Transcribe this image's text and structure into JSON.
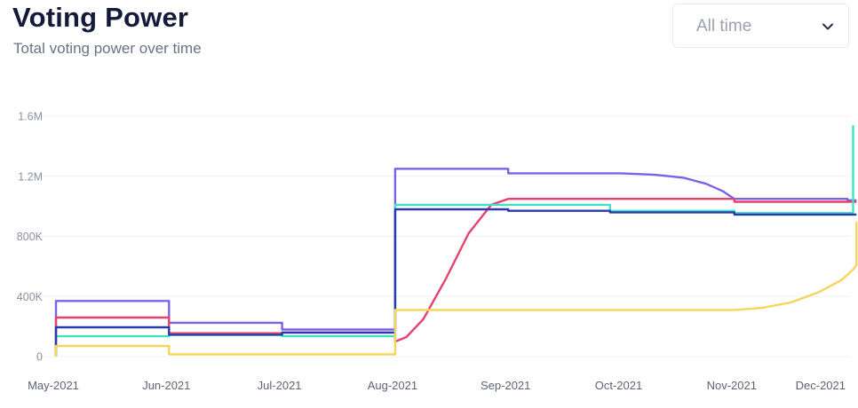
{
  "header": {
    "title": "Voting Power",
    "subtitle": "Total voting power over time"
  },
  "range_select": {
    "selected": "All time",
    "icon": "chevron-down-icon"
  },
  "chart_data": {
    "type": "line",
    "title": "Voting Power",
    "subtitle": "Total voting power over time",
    "x_ticks": [
      "May-2021",
      "Jun-2021",
      "Jul-2021",
      "Aug-2021",
      "Sep-2021",
      "Oct-2021",
      "Nov-2021",
      "Dec-2021"
    ],
    "y_ticks": [
      {
        "value": 0,
        "label": "0"
      },
      {
        "value": 400000,
        "label": "400K"
      },
      {
        "value": 800000,
        "label": "800K"
      },
      {
        "value": 1200000,
        "label": "1.2M"
      },
      {
        "value": 1600000,
        "label": "1.6M"
      }
    ],
    "ylim": [
      0,
      1600000
    ],
    "grid": true,
    "x_unit": "months since May-2021",
    "series": [
      {
        "color": "#7b61ea",
        "points": [
          [
            0,
            0
          ],
          [
            0,
            370000
          ],
          [
            1,
            370000
          ],
          [
            1,
            225000
          ],
          [
            2,
            225000
          ],
          [
            2,
            180000
          ],
          [
            3,
            180000
          ],
          [
            3,
            1250000
          ],
          [
            4,
            1250000
          ],
          [
            4,
            1220000
          ],
          [
            5,
            1220000
          ],
          [
            5.3,
            1210000
          ],
          [
            5.55,
            1190000
          ],
          [
            5.75,
            1150000
          ],
          [
            5.9,
            1100000
          ],
          [
            6,
            1050000
          ],
          [
            7,
            1050000
          ],
          [
            7,
            1040000
          ],
          [
            7.08,
            1040000
          ]
        ]
      },
      {
        "color": "#e5416a",
        "points": [
          [
            0,
            0
          ],
          [
            0,
            260000
          ],
          [
            1,
            260000
          ],
          [
            1,
            155000
          ],
          [
            2,
            155000
          ],
          [
            2,
            160000
          ],
          [
            3,
            160000
          ],
          [
            3,
            100000
          ],
          [
            3.1,
            130000
          ],
          [
            3.25,
            250000
          ],
          [
            3.45,
            520000
          ],
          [
            3.65,
            820000
          ],
          [
            3.85,
            1010000
          ],
          [
            4,
            1050000
          ],
          [
            6,
            1050000
          ],
          [
            6,
            1030000
          ],
          [
            7.08,
            1030000
          ]
        ]
      },
      {
        "color": "#3de3c4",
        "points": [
          [
            0,
            0
          ],
          [
            0,
            135000
          ],
          [
            1,
            135000
          ],
          [
            1,
            145000
          ],
          [
            2,
            145000
          ],
          [
            2,
            135000
          ],
          [
            3,
            135000
          ],
          [
            3,
            1010000
          ],
          [
            4.9,
            1010000
          ],
          [
            4.9,
            970000
          ],
          [
            6,
            970000
          ],
          [
            6,
            955000
          ],
          [
            7.05,
            955000
          ],
          [
            7.05,
            1540000
          ]
        ]
      },
      {
        "color": "#2b3aa8",
        "points": [
          [
            0,
            60000
          ],
          [
            0,
            195000
          ],
          [
            1,
            195000
          ],
          [
            1,
            145000
          ],
          [
            2,
            145000
          ],
          [
            2,
            160000
          ],
          [
            3,
            160000
          ],
          [
            3,
            980000
          ],
          [
            4,
            980000
          ],
          [
            4,
            970000
          ],
          [
            4.9,
            970000
          ],
          [
            4.9,
            960000
          ],
          [
            6,
            960000
          ],
          [
            6,
            945000
          ],
          [
            7.08,
            945000
          ]
        ]
      },
      {
        "color": "#f6d55c",
        "points": [
          [
            0,
            0
          ],
          [
            0,
            70000
          ],
          [
            1,
            70000
          ],
          [
            1,
            15000
          ],
          [
            3,
            15000
          ],
          [
            3,
            310000
          ],
          [
            6,
            310000
          ],
          [
            6.25,
            325000
          ],
          [
            6.5,
            360000
          ],
          [
            6.75,
            430000
          ],
          [
            6.95,
            510000
          ],
          [
            7.05,
            580000
          ],
          [
            7.08,
            610000
          ],
          [
            7.08,
            900000
          ]
        ]
      }
    ]
  }
}
